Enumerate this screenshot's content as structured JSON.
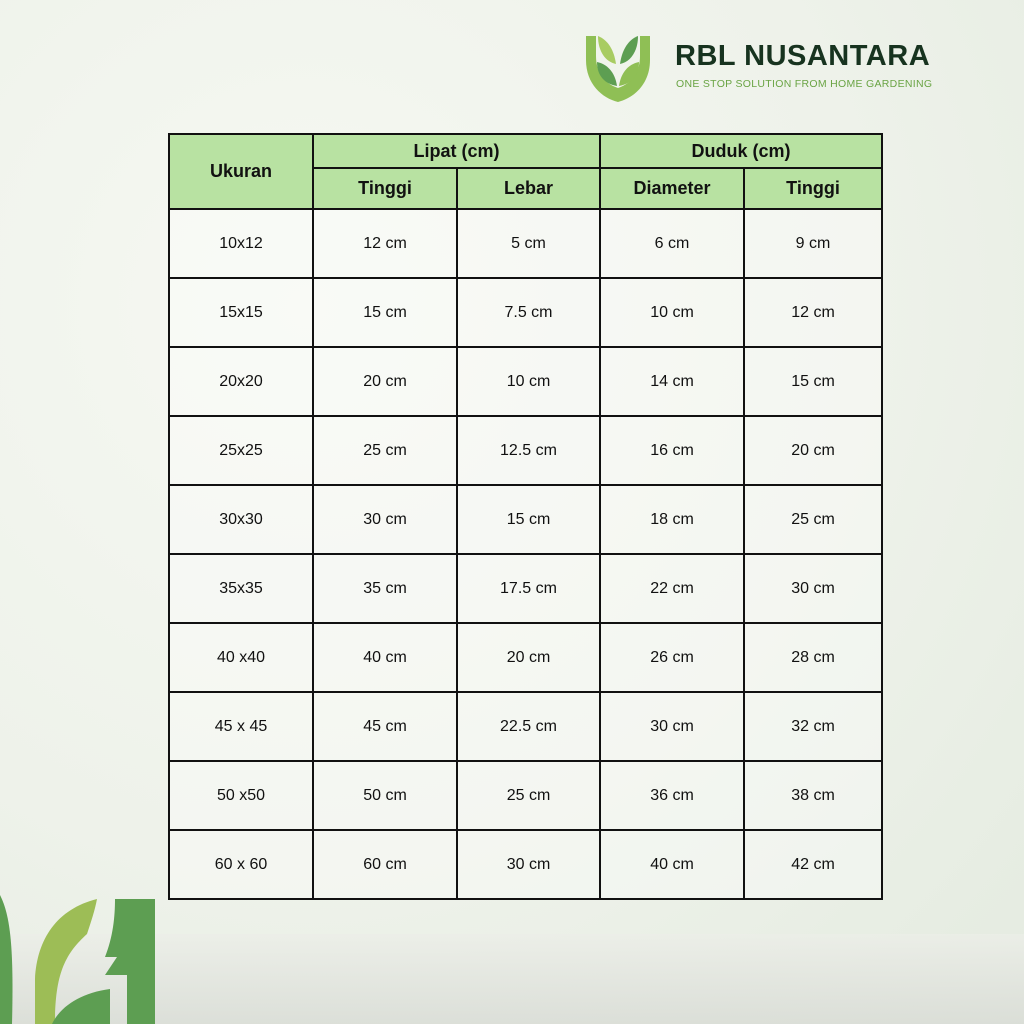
{
  "brand": {
    "name": "RBL NUSANTARA",
    "tagline": "ONE STOP SOLUTION FROM HOME GARDENING",
    "colors": {
      "dark": "#17331f",
      "green": "#5d9e52",
      "lightgreen": "#9dbd56"
    }
  },
  "table": {
    "header": {
      "size": "Ukuran",
      "group1": "Lipat (cm)",
      "group2": "Duduk (cm)",
      "col_tinggi1": "Tinggi",
      "col_lebar": "Lebar",
      "col_diameter": "Diameter",
      "col_tinggi2": "Tinggi"
    },
    "rows": [
      [
        "10x12",
        "12 cm",
        "5 cm",
        "6 cm",
        "9 cm"
      ],
      [
        "15x15",
        "15 cm",
        "7.5 cm",
        "10 cm",
        "12 cm"
      ],
      [
        "20x20",
        "20 cm",
        "10 cm",
        "14 cm",
        "15 cm"
      ],
      [
        "25x25",
        "25 cm",
        "12.5 cm",
        "16 cm",
        "20 cm"
      ],
      [
        "30x30",
        "30 cm",
        "15 cm",
        "18 cm",
        "25 cm"
      ],
      [
        "35x35",
        "35 cm",
        "17.5 cm",
        "22 cm",
        "30 cm"
      ],
      [
        "40 x40",
        "40 cm",
        "20 cm",
        "26 cm",
        "28 cm"
      ],
      [
        "45 x 45",
        "45 cm",
        "22.5 cm",
        "30 cm",
        "32 cm"
      ],
      [
        "50 x50",
        "50 cm",
        "25 cm",
        "36 cm",
        "38 cm"
      ],
      [
        "60 x 60",
        "60 cm",
        "30 cm",
        "40 cm",
        "42 cm"
      ]
    ]
  }
}
